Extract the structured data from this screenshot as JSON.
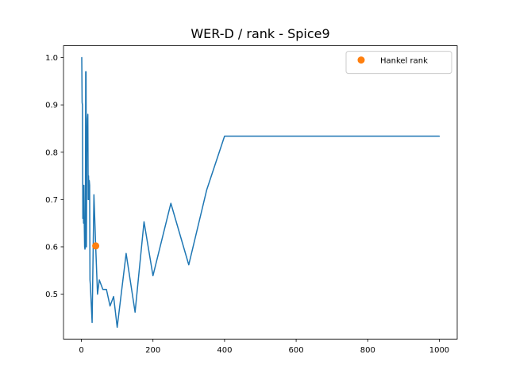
{
  "chart_data": {
    "type": "line",
    "title": "WER-D / rank - Spice9",
    "xlabel": "",
    "ylabel": "",
    "xlim": [
      -50,
      1050
    ],
    "ylim": [
      0.405,
      1.025
    ],
    "xticks": [
      0,
      200,
      400,
      600,
      800,
      1000
    ],
    "xtick_labels": [
      "0",
      "200",
      "400",
      "600",
      "800",
      "1000"
    ],
    "yticks": [
      0.5,
      0.6,
      0.7,
      0.8,
      0.9,
      1.0
    ],
    "ytick_labels": [
      "0.5",
      "0.6",
      "0.7",
      "0.8",
      "0.9",
      "1.0"
    ],
    "grid": false,
    "legend": {
      "position": "upper right"
    },
    "series": [
      {
        "name": "",
        "kind": "line",
        "color": "#1f77b4",
        "x": [
          1,
          2,
          3,
          4,
          5,
          6,
          7,
          8,
          9,
          10,
          11,
          12,
          13,
          14,
          15,
          16,
          17,
          18,
          19,
          20,
          21,
          22,
          23,
          24,
          25,
          30,
          35,
          40,
          45,
          50,
          60,
          70,
          80,
          90,
          100,
          125,
          150,
          175,
          200,
          250,
          300,
          350,
          400,
          500,
          600,
          700,
          800,
          900,
          1000
        ],
        "y": [
          1.0,
          0.905,
          0.9,
          0.66,
          0.73,
          0.65,
          0.73,
          0.65,
          0.6,
          0.595,
          0.6,
          0.97,
          0.97,
          0.6,
          0.8,
          0.82,
          0.87,
          0.88,
          0.7,
          0.75,
          0.7,
          0.74,
          0.73,
          0.53,
          0.52,
          0.44,
          0.71,
          0.6,
          0.5,
          0.53,
          0.51,
          0.51,
          0.475,
          0.495,
          0.43,
          0.586,
          0.462,
          0.653,
          0.539,
          0.692,
          0.562,
          0.72,
          0.834,
          0.834,
          0.834,
          0.834,
          0.834,
          0.834,
          0.834
        ]
      },
      {
        "name": "Hankel rank",
        "kind": "point",
        "color": "#ff7f0e",
        "x": [
          40
        ],
        "y": [
          0.602
        ]
      }
    ]
  }
}
